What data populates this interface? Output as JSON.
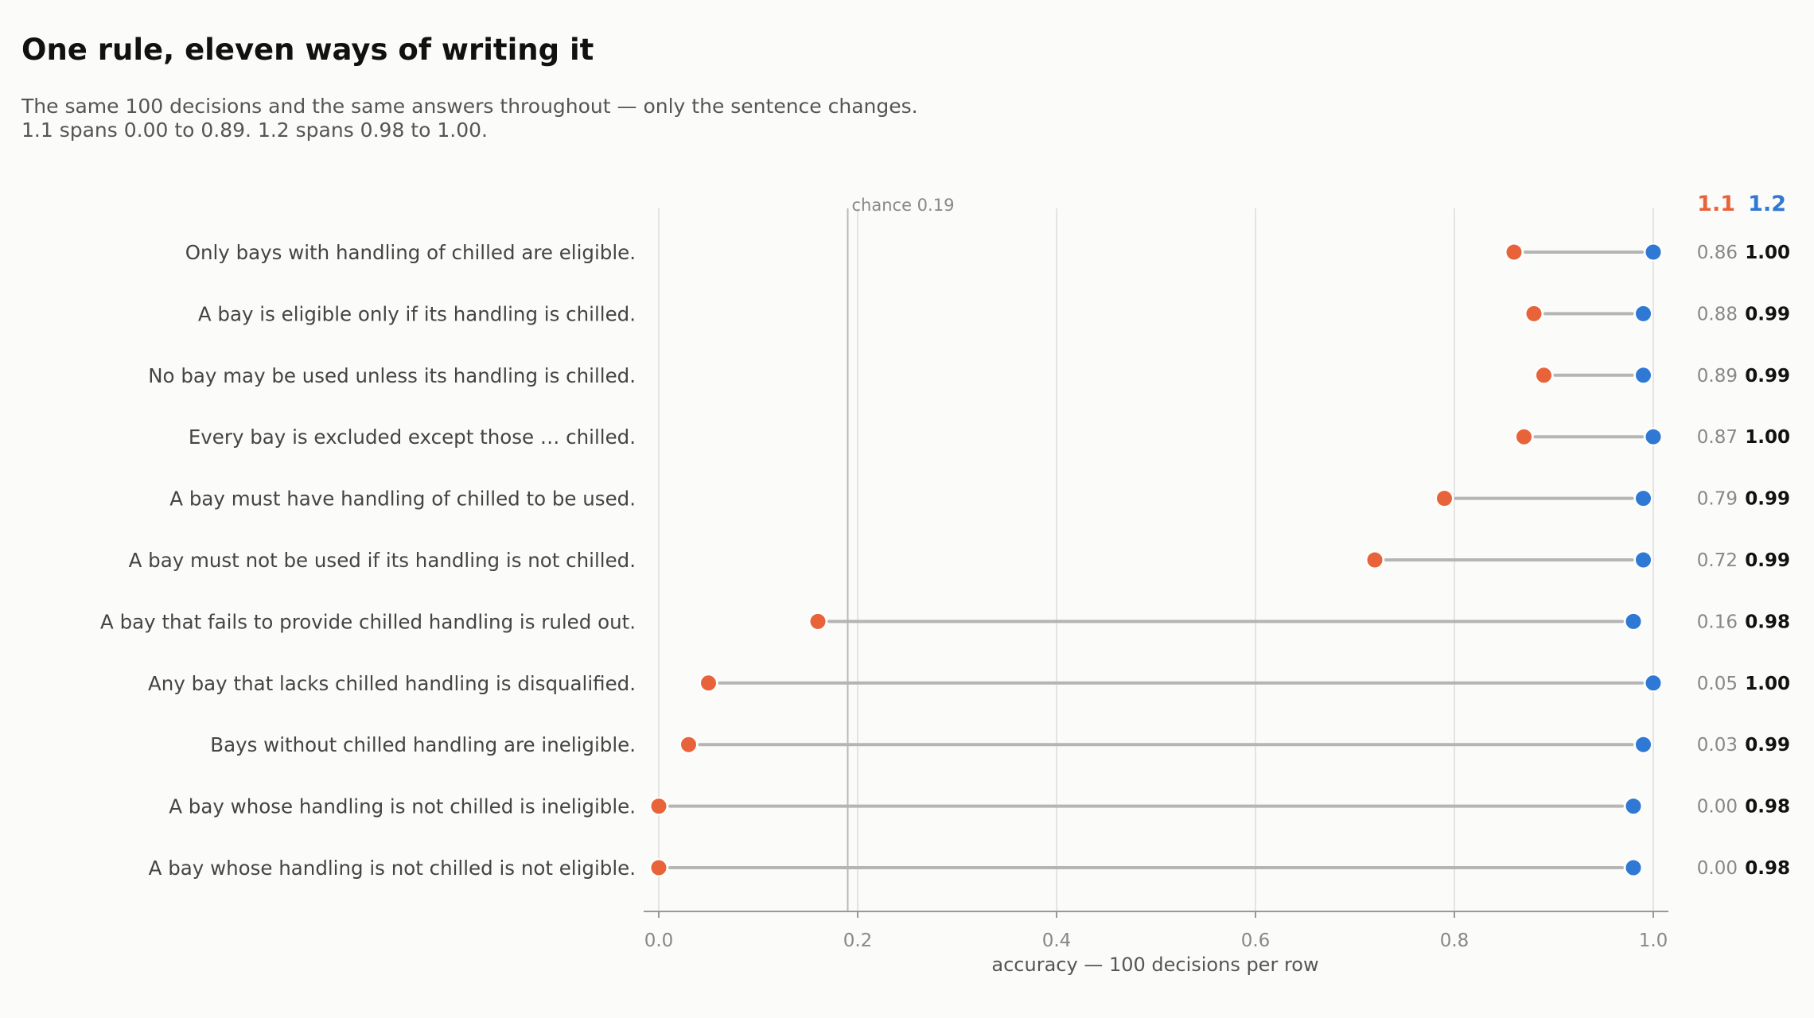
{
  "chart_data": {
    "type": "dumbbell",
    "title": "One rule, eleven ways of writing it",
    "subtitle_lines": [
      "The same 100 decisions and the same answers throughout — only the sentence changes.",
      "1.1 spans 0.00 to 0.89. 1.2 spans 0.98 to 1.00."
    ],
    "xlabel": "accuracy — 100 decisions per row",
    "xlim": [
      0,
      1
    ],
    "xticks": [
      0.0,
      0.2,
      0.4,
      0.6,
      0.8,
      1.0
    ],
    "xtick_labels": [
      "0.0",
      "0.2",
      "0.4",
      "0.6",
      "0.8",
      "1.0"
    ],
    "grid": "vertical",
    "reference_line": {
      "value": 0.19,
      "label": "chance 0.19"
    },
    "series": [
      {
        "name": "1.1",
        "color": "#e8633a"
      },
      {
        "name": "1.2",
        "color": "#2f78d4"
      }
    ],
    "rows": [
      {
        "label": "Only bays with handling of chilled are eligible.",
        "v11": 0.86,
        "v12": 1.0,
        "v11_text": "0.86",
        "v12_text": "1.00"
      },
      {
        "label": "A bay is eligible only if its handling is chilled.",
        "v11": 0.88,
        "v12": 0.99,
        "v11_text": "0.88",
        "v12_text": "0.99"
      },
      {
        "label": "No bay may be used unless its handling is chilled.",
        "v11": 0.89,
        "v12": 0.99,
        "v11_text": "0.89",
        "v12_text": "0.99"
      },
      {
        "label": "Every bay is excluded except those … chilled.",
        "v11": 0.87,
        "v12": 1.0,
        "v11_text": "0.87",
        "v12_text": "1.00"
      },
      {
        "label": "A bay must have handling of chilled to be used.",
        "v11": 0.79,
        "v12": 0.99,
        "v11_text": "0.79",
        "v12_text": "0.99"
      },
      {
        "label": "A bay must not be used if its handling is not chilled.",
        "v11": 0.72,
        "v12": 0.99,
        "v11_text": "0.72",
        "v12_text": "0.99"
      },
      {
        "label": "A bay that fails to provide chilled handling is ruled out.",
        "v11": 0.16,
        "v12": 0.98,
        "v11_text": "0.16",
        "v12_text": "0.98"
      },
      {
        "label": "Any bay that lacks chilled handling is disqualified.",
        "v11": 0.05,
        "v12": 1.0,
        "v11_text": "0.05",
        "v12_text": "1.00"
      },
      {
        "label": "Bays without chilled handling are ineligible.",
        "v11": 0.03,
        "v12": 0.99,
        "v11_text": "0.03",
        "v12_text": "0.99"
      },
      {
        "label": "A bay whose handling is not chilled is ineligible.",
        "v11": 0.0,
        "v12": 0.98,
        "v11_text": "0.00",
        "v12_text": "0.98"
      },
      {
        "label": "A bay whose handling is not chilled is not eligible.",
        "v11": 0.0,
        "v12": 0.98,
        "v11_text": "0.00",
        "v12_text": "0.98"
      }
    ]
  }
}
